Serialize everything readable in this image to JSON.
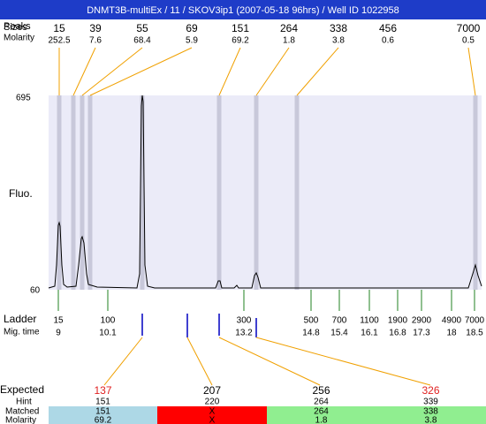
{
  "title": "DNMT3B-multiEx / 11 / SKOV3ip1 (2007-05-18 96hrs) / Well ID 1022958",
  "peaks": {
    "peaks_label": "Peaks",
    "sizes_label": "Sizes",
    "molarity_label": "Molarity",
    "columns": [
      {
        "size": "15",
        "molarity": "252.5"
      },
      {
        "size": "39",
        "molarity": "7.6"
      },
      {
        "size": "55",
        "molarity": "68.4"
      },
      {
        "size": "69",
        "molarity": "5.9"
      },
      {
        "size": "151",
        "molarity": "69.2"
      },
      {
        "size": "264",
        "molarity": "1.8"
      },
      {
        "size": "338",
        "molarity": "3.8"
      },
      {
        "size": "456",
        "molarity": "0.6"
      },
      {
        "size": "7000",
        "molarity": "0.5"
      }
    ]
  },
  "plot": {
    "y_label": "Fluo.",
    "y_top": "695",
    "y_bottom": "60"
  },
  "ladder": {
    "label": "Ladder",
    "mig_label": "Mig. time",
    "columns": [
      {
        "size": "15",
        "mig": "9"
      },
      {
        "size": "100",
        "mig": "10.1"
      },
      {
        "size": "300",
        "mig": "13.2"
      },
      {
        "size": "500",
        "mig": "14.8"
      },
      {
        "size": "700",
        "mig": "15.4"
      },
      {
        "size": "1100",
        "mig": "16.1"
      },
      {
        "size": "1900",
        "mig": "16.8"
      },
      {
        "size": "2900",
        "mig": "17.3"
      },
      {
        "size": "4900",
        "mig": "18"
      },
      {
        "size": "7000",
        "mig": "18.5"
      }
    ]
  },
  "results": {
    "expected_label": "Expected",
    "hint_label": "Hint",
    "matched_label": "Matched",
    "molarity_label": "Molarity",
    "columns": [
      {
        "expected": "137",
        "expected_color": "#e02020",
        "hint": "151",
        "matched": "151",
        "molarity": "69.2",
        "color": "#add8e6"
      },
      {
        "expected": "207",
        "expected_color": "#000000",
        "hint": "220",
        "matched": "X",
        "molarity": "X",
        "color": "#ff0000"
      },
      {
        "expected": "256",
        "expected_color": "#000000",
        "hint": "264",
        "matched": "264",
        "molarity": "1.8",
        "color": "#90ee90"
      },
      {
        "expected": "326",
        "expected_color": "#e02020",
        "hint": "339",
        "matched": "338",
        "molarity": "3.8",
        "color": "#90ee90"
      }
    ]
  }
}
